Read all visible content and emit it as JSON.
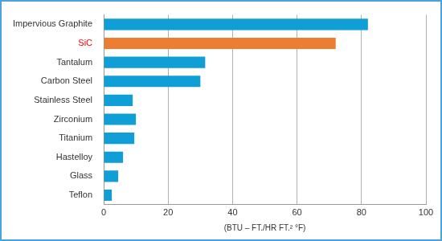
{
  "chart_data": {
    "type": "bar",
    "orientation": "horizontal",
    "categories": [
      "Impervious Graphite",
      "SiC",
      "Tantalum",
      "Carbon Steel",
      "Stainless Steel",
      "Zirconium",
      "Titanium",
      "Hastelloy",
      "Glass",
      "Teflon"
    ],
    "values": [
      82,
      72,
      31.5,
      30,
      9,
      10,
      9.5,
      6,
      4.5,
      2.5
    ],
    "colors": [
      "#0f9ed5",
      "#ed7d31",
      "#0f9ed5",
      "#0f9ed5",
      "#0f9ed5",
      "#0f9ed5",
      "#0f9ed5",
      "#0f9ed5",
      "#0f9ed5",
      "#0f9ed5"
    ],
    "x_label": "(BTU – FT./HR FT.² °F)",
    "xlim": [
      0,
      100
    ],
    "xticks": [
      0,
      20,
      40,
      60,
      80,
      100
    ],
    "grid": true
  }
}
